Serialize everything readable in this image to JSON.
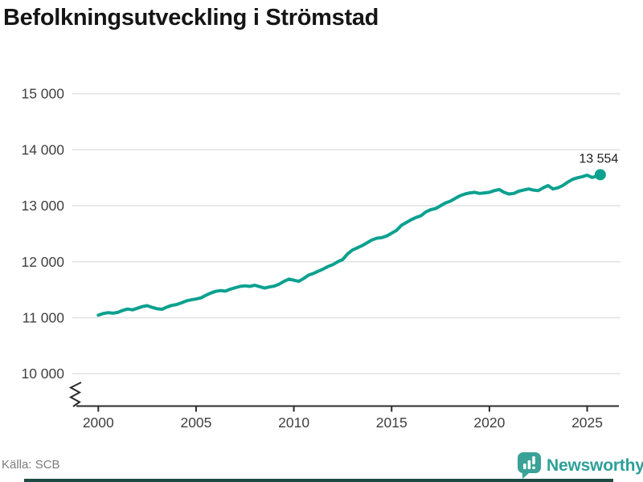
{
  "header": {
    "title": "Befolkningsutveckling i Strömstad"
  },
  "footer": {
    "source": "Källa: SCB",
    "brand": "Newsworthy"
  },
  "icons": {
    "brand_logo": "bar-chart-speech-bubble-icon"
  },
  "colors": {
    "line": "#0ba18f",
    "end_dot": "#0ba18f",
    "grid": "#e3e3e3",
    "axis": "#2b2b2b",
    "tick_label": "#404040",
    "title": "#151515",
    "source_text": "#7c7c7c",
    "brand_teal": "#2d9f99",
    "bottom_bar": "#1e4b46"
  },
  "chart_data": {
    "type": "line",
    "title": "Befolkningsutveckling i Strömstad",
    "xlabel": "",
    "ylabel": "",
    "ylim": [
      10000,
      15000
    ],
    "xlim": [
      2000,
      2025.67
    ],
    "grid": true,
    "axis_break_bottom_left": true,
    "x_ticks": [
      2000,
      2005,
      2010,
      2015,
      2020,
      2025
    ],
    "y_ticks": [
      [
        10000,
        "10 000"
      ],
      [
        11000,
        "11 000"
      ],
      [
        12000,
        "12 000"
      ],
      [
        13000,
        "13 000"
      ],
      [
        14000,
        "14 000"
      ],
      [
        15000,
        "15 000"
      ]
    ],
    "end_label": "13 554",
    "end_value": 13554,
    "series": [
      {
        "points": [
          [
            2000.0,
            11045
          ],
          [
            2000.25,
            11075
          ],
          [
            2000.5,
            11090
          ],
          [
            2000.75,
            11080
          ],
          [
            2001.0,
            11095
          ],
          [
            2001.25,
            11130
          ],
          [
            2001.5,
            11155
          ],
          [
            2001.75,
            11140
          ],
          [
            2002.0,
            11170
          ],
          [
            2002.25,
            11200
          ],
          [
            2002.5,
            11215
          ],
          [
            2002.75,
            11185
          ],
          [
            2003.0,
            11160
          ],
          [
            2003.25,
            11150
          ],
          [
            2003.5,
            11190
          ],
          [
            2003.75,
            11220
          ],
          [
            2004.0,
            11235
          ],
          [
            2004.25,
            11265
          ],
          [
            2004.5,
            11300
          ],
          [
            2004.75,
            11320
          ],
          [
            2005.0,
            11335
          ],
          [
            2005.25,
            11355
          ],
          [
            2005.5,
            11400
          ],
          [
            2005.75,
            11440
          ],
          [
            2006.0,
            11470
          ],
          [
            2006.25,
            11485
          ],
          [
            2006.5,
            11475
          ],
          [
            2006.75,
            11510
          ],
          [
            2007.0,
            11535
          ],
          [
            2007.25,
            11560
          ],
          [
            2007.5,
            11570
          ],
          [
            2007.75,
            11560
          ],
          [
            2008.0,
            11580
          ],
          [
            2008.25,
            11555
          ],
          [
            2008.5,
            11530
          ],
          [
            2008.75,
            11550
          ],
          [
            2009.0,
            11565
          ],
          [
            2009.25,
            11600
          ],
          [
            2009.5,
            11650
          ],
          [
            2009.75,
            11690
          ],
          [
            2010.0,
            11670
          ],
          [
            2010.25,
            11650
          ],
          [
            2010.5,
            11700
          ],
          [
            2010.75,
            11760
          ],
          [
            2011.0,
            11790
          ],
          [
            2011.25,
            11830
          ],
          [
            2011.5,
            11870
          ],
          [
            2011.75,
            11915
          ],
          [
            2012.0,
            11950
          ],
          [
            2012.25,
            12000
          ],
          [
            2012.5,
            12040
          ],
          [
            2012.75,
            12140
          ],
          [
            2013.0,
            12210
          ],
          [
            2013.25,
            12250
          ],
          [
            2013.5,
            12290
          ],
          [
            2013.75,
            12340
          ],
          [
            2014.0,
            12390
          ],
          [
            2014.25,
            12420
          ],
          [
            2014.5,
            12430
          ],
          [
            2014.75,
            12460
          ],
          [
            2015.0,
            12510
          ],
          [
            2015.25,
            12560
          ],
          [
            2015.5,
            12650
          ],
          [
            2015.75,
            12700
          ],
          [
            2016.0,
            12750
          ],
          [
            2016.25,
            12790
          ],
          [
            2016.5,
            12820
          ],
          [
            2016.75,
            12890
          ],
          [
            2017.0,
            12930
          ],
          [
            2017.25,
            12950
          ],
          [
            2017.5,
            13000
          ],
          [
            2017.75,
            13050
          ],
          [
            2018.0,
            13080
          ],
          [
            2018.25,
            13130
          ],
          [
            2018.5,
            13180
          ],
          [
            2018.75,
            13210
          ],
          [
            2019.0,
            13230
          ],
          [
            2019.25,
            13240
          ],
          [
            2019.5,
            13220
          ],
          [
            2019.75,
            13230
          ],
          [
            2020.0,
            13240
          ],
          [
            2020.25,
            13270
          ],
          [
            2020.5,
            13290
          ],
          [
            2020.75,
            13240
          ],
          [
            2021.0,
            13210
          ],
          [
            2021.25,
            13220
          ],
          [
            2021.5,
            13260
          ],
          [
            2021.75,
            13280
          ],
          [
            2022.0,
            13300
          ],
          [
            2022.25,
            13280
          ],
          [
            2022.5,
            13270
          ],
          [
            2022.75,
            13320
          ],
          [
            2023.0,
            13360
          ],
          [
            2023.25,
            13300
          ],
          [
            2023.5,
            13320
          ],
          [
            2023.75,
            13360
          ],
          [
            2024.0,
            13420
          ],
          [
            2024.25,
            13470
          ],
          [
            2024.5,
            13500
          ],
          [
            2024.75,
            13520
          ],
          [
            2025.0,
            13545
          ],
          [
            2025.25,
            13505
          ],
          [
            2025.5,
            13530
          ],
          [
            2025.67,
            13554
          ]
        ]
      }
    ]
  }
}
